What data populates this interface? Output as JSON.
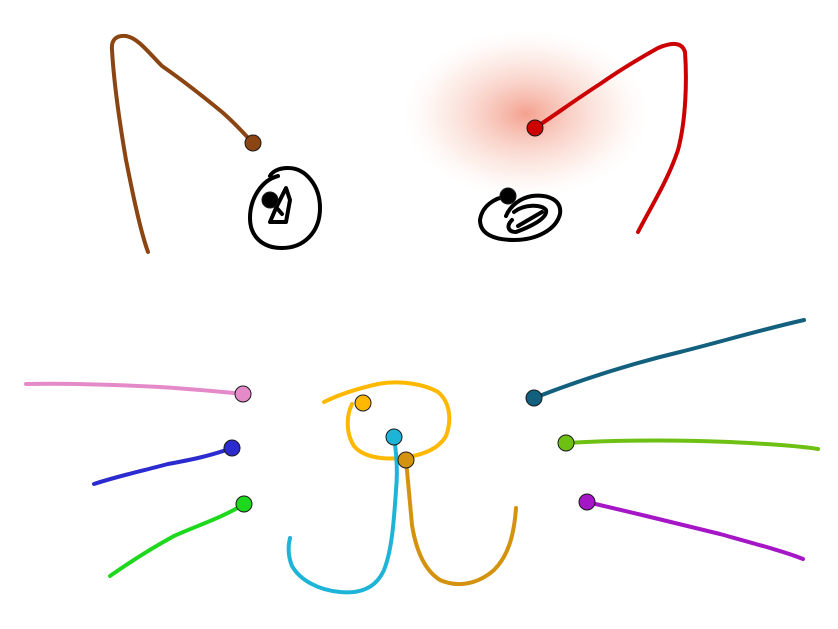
{
  "canvas": {
    "background": "#ffffff"
  },
  "strokes": [
    {
      "name": "left-ear-stroke",
      "color": "#8B4513",
      "width": 4
    },
    {
      "name": "right-ear-stroke",
      "color": "#CC0000",
      "width": 4
    },
    {
      "name": "left-eye-stroke",
      "color": "#000000",
      "width": 4
    },
    {
      "name": "right-eye-stroke",
      "color": "#000000",
      "width": 4
    },
    {
      "name": "nose-stroke",
      "color": "#FFB800",
      "width": 4
    },
    {
      "name": "mouth-left-stroke",
      "color": "#1EB4D8",
      "width": 4
    },
    {
      "name": "mouth-right-stroke",
      "color": "#D4930F",
      "width": 4
    },
    {
      "name": "whisker-left-top-stroke",
      "color": "#E58AC8",
      "width": 4
    },
    {
      "name": "whisker-left-middle-stroke",
      "color": "#2B2BD0",
      "width": 4
    },
    {
      "name": "whisker-left-bottom-stroke",
      "color": "#1ED81E",
      "width": 4
    },
    {
      "name": "whisker-right-top-stroke",
      "color": "#12607E",
      "width": 4
    },
    {
      "name": "whisker-right-middle-stroke",
      "color": "#6EC012",
      "width": 4
    },
    {
      "name": "whisker-right-bottom-stroke",
      "color": "#A516C6",
      "width": 4
    }
  ],
  "highlight": {
    "target": "right-ear-stroke",
    "color": "#F4A090"
  }
}
